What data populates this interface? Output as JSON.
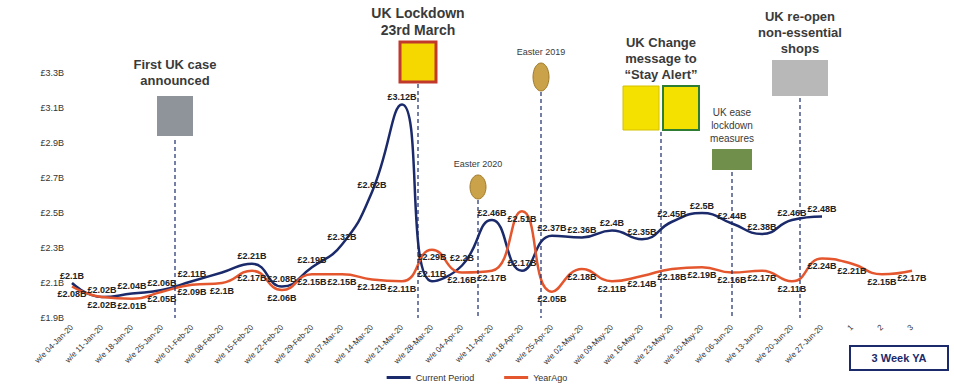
{
  "chart_data": {
    "type": "line",
    "categories": [
      "w/e 04-Jan-20",
      "w/e 11-Jan-20",
      "w/e 18-Jan-20",
      "w/e 25-Jan-20",
      "w/e 01-Feb-20",
      "w/e 08-Feb-20",
      "w/e 15-Feb-20",
      "w/e 22-Feb-20",
      "w/e 29-Feb-20",
      "w/e 07-Mar-20",
      "w/e 14-Mar-20",
      "w/e 21-Mar-20",
      "w/e 28-Mar-20",
      "w/e 04-Apr-20",
      "w/e 11-Apr-20",
      "w/e 18-Apr-20",
      "w/e 25-Apr-20",
      "w/e 02-May-20",
      "w/e 09-May-20",
      "w/e 16-May-20",
      "w/e 23-May-20",
      "w/e 30-May-20",
      "w/e 06-Jun-20",
      "w/e 13-Jun-20",
      "w/e 20-Jun-20",
      "w/e 27-Jun-20",
      "1",
      "2",
      "3"
    ],
    "series": [
      {
        "name": "Current Period",
        "color": "#1b2a6b",
        "values": [
          2.1,
          2.02,
          2.04,
          2.06,
          2.11,
          2.16,
          2.21,
          2.08,
          2.19,
          2.32,
          2.62,
          3.12,
          2.11,
          2.2,
          2.46,
          2.17,
          2.37,
          2.36,
          2.4,
          2.35,
          2.45,
          2.5,
          2.44,
          2.38,
          2.46,
          2.48,
          null,
          null,
          null
        ],
        "value_labels": [
          "£2.1B",
          "£2.02B",
          "£2.04B",
          "£2.06B",
          "£2.11B",
          null,
          "£2.21B",
          "£2.08B",
          "£2.19B",
          "£2.32B",
          "£2.62B",
          "£3.12B",
          "£2.11B",
          "£2.2B",
          "£2.46B",
          "£2.17B",
          "£2.37B",
          "£2.36B",
          "£2.4B",
          "£2.35B",
          "£2.45B",
          "£2.5B",
          "£2.44B",
          "£2.38B",
          "£2.46B",
          "£2.48B",
          null,
          null,
          null
        ]
      },
      {
        "name": "YearAgo",
        "color": "#e4572e",
        "values": [
          2.08,
          2.02,
          2.01,
          2.05,
          2.09,
          2.1,
          2.17,
          2.06,
          2.15,
          2.15,
          2.12,
          2.11,
          2.29,
          2.16,
          2.17,
          2.51,
          2.05,
          2.18,
          2.11,
          2.14,
          2.18,
          2.19,
          2.16,
          2.17,
          2.11,
          2.24,
          2.21,
          2.15,
          2.17
        ],
        "value_labels": [
          "£2.08B",
          "£2.02B",
          "£2.01B",
          "£2.05B",
          "£2.09B",
          "£2.1B",
          "£2.17B",
          "£2.06B",
          "£2.15B",
          "£2.15B",
          "£2.12B",
          "£2.11B",
          "£2.29B",
          "£2.16B",
          "£2.17B",
          "£2.51B",
          "£2.05B",
          "£2.18B",
          "£2.11B",
          "£2.14B",
          "£2.18B",
          "£2.19B",
          "£2.16B",
          "£2.17B",
          "£2.11B",
          "£2.24B",
          "£2.21B",
          "£2.15B",
          "£2.17B"
        ]
      }
    ],
    "ylim": [
      1.9,
      3.3
    ],
    "yticks": [
      {
        "value": 1.9,
        "label": "£1.9B"
      },
      {
        "value": 2.1,
        "label": "£2.1B"
      },
      {
        "value": 2.3,
        "label": "£2.3B"
      },
      {
        "value": 2.5,
        "label": "£2.5B"
      },
      {
        "value": 2.7,
        "label": "£2.7B"
      },
      {
        "value": 2.9,
        "label": "£2.9B"
      },
      {
        "value": 3.1,
        "label": "£3.1B"
      },
      {
        "value": 3.3,
        "label": "£3.3B"
      }
    ],
    "grid": false,
    "legend": "bottom",
    "data_labels": true,
    "annotations": [
      {
        "text": "First UK case\nannounced",
        "x": "w/e 01-Feb-20"
      },
      {
        "text": "UK Lockdown\n23rd March",
        "x": "w/e 28-Mar-20"
      },
      {
        "text": "Easter 2020",
        "x": "w/e 11-Apr-20"
      },
      {
        "text": "Easter 2019",
        "x": "w/e 18-Apr-20"
      },
      {
        "text": "UK Change\nmessage to\n“Stay Alert”",
        "x": "w/e 16-May-20"
      },
      {
        "text": "UK ease\nlockdown\nmeasures",
        "x": "w/e 06-Jun-20"
      },
      {
        "text": "UK re-open\nnon-essential\nshops",
        "x": "w/e 20-Jun-20"
      },
      {
        "text": "3 Week YA",
        "x": "2"
      }
    ]
  }
}
